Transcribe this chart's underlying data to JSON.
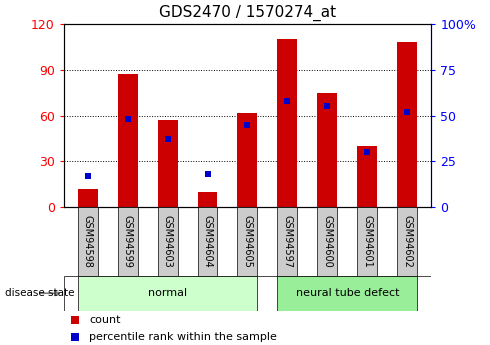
{
  "title": "GDS2470 / 1570274_at",
  "categories": [
    "GSM94598",
    "GSM94599",
    "GSM94603",
    "GSM94604",
    "GSM94605",
    "GSM94597",
    "GSM94600",
    "GSM94601",
    "GSM94602"
  ],
  "count_values": [
    12,
    87,
    57,
    10,
    62,
    110,
    75,
    40,
    108
  ],
  "percentile_values": [
    17,
    48,
    37,
    18,
    45,
    58,
    55,
    30,
    52
  ],
  "left_ylim": [
    0,
    120
  ],
  "right_ylim": [
    0,
    100
  ],
  "left_yticks": [
    0,
    30,
    60,
    90,
    120
  ],
  "right_yticks": [
    0,
    25,
    50,
    75,
    100
  ],
  "bar_color": "#cc0000",
  "marker_color": "#0000cc",
  "bar_width": 0.5,
  "normal_indices": [
    0,
    1,
    2,
    3,
    4
  ],
  "defect_indices": [
    5,
    6,
    7,
    8
  ],
  "normal_label": "normal",
  "defect_label": "neural tube defect",
  "disease_state_label": "disease state",
  "normal_bg": "#ccffcc",
  "defect_bg": "#99ee99",
  "tick_bg": "#cccccc",
  "legend_count": "count",
  "legend_percentile": "percentile rank within the sample",
  "title_fontsize": 11,
  "axis_fontsize": 9,
  "tick_fontsize": 7
}
